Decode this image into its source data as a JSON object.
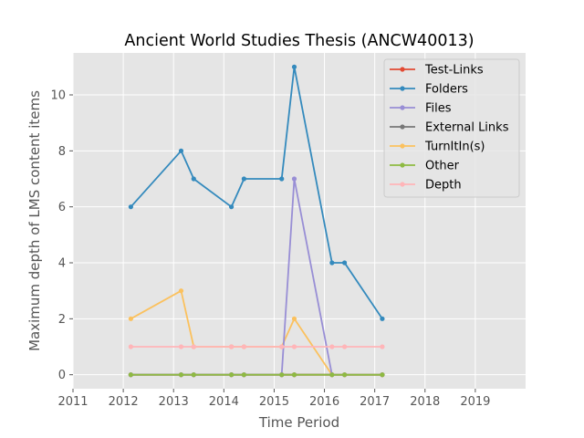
{
  "chart_data": {
    "type": "line",
    "title": "Ancient World Studies Thesis (ANCW40013)",
    "xlabel": "Time Period",
    "ylabel": "Maximum depth of LMS content items",
    "xlim": [
      2011,
      2020
    ],
    "ylim": [
      -0.5,
      11.5
    ],
    "xticks": [
      2011,
      2012,
      2013,
      2014,
      2015,
      2016,
      2017,
      2018,
      2019
    ],
    "yticks": [
      0,
      2,
      4,
      6,
      8,
      10
    ],
    "grid": true,
    "legend_position": "top-right",
    "x": [
      2012.15,
      2013.15,
      2013.4,
      2014.15,
      2014.4,
      2015.15,
      2015.4,
      2016.15,
      2016.4,
      2017.15
    ],
    "series": [
      {
        "name": "Test-Links",
        "color": "#E24A33",
        "values": [
          0,
          0,
          0,
          0,
          0,
          0,
          0,
          0,
          0,
          0
        ]
      },
      {
        "name": "Folders",
        "color": "#348ABD",
        "values": [
          6,
          8,
          7,
          6,
          7,
          7,
          11,
          4,
          4,
          2
        ]
      },
      {
        "name": "Files",
        "color": "#988ED5",
        "values": [
          0,
          0,
          0,
          0,
          0,
          0,
          7,
          0,
          0,
          0
        ]
      },
      {
        "name": "External Links",
        "color": "#777777",
        "values": [
          0,
          0,
          0,
          0,
          0,
          0,
          0,
          0,
          0,
          0
        ]
      },
      {
        "name": "TurnItIn(s)",
        "color": "#FBC15E",
        "values": [
          2,
          3,
          1,
          1,
          1,
          1,
          2,
          0,
          0,
          0
        ]
      },
      {
        "name": "Other",
        "color": "#8EBA42",
        "values": [
          0,
          0,
          0,
          0,
          0,
          0,
          0,
          0,
          0,
          0
        ]
      },
      {
        "name": "Depth",
        "color": "#FFB5B8",
        "values": [
          1,
          1,
          1,
          1,
          1,
          1,
          1,
          1,
          1,
          1
        ]
      }
    ],
    "draw_order": [
      "Test-Links",
      "Folders",
      "External Links",
      "TurnItIn(s)",
      "Files",
      "Other",
      "Depth"
    ]
  }
}
